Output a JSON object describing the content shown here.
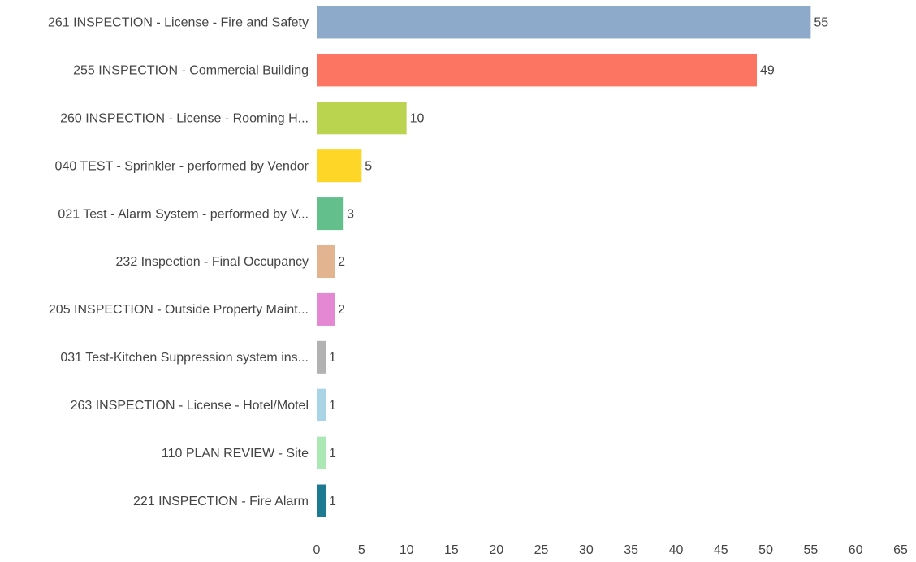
{
  "chart_data": {
    "type": "bar",
    "orientation": "horizontal",
    "categories": [
      "261 INSPECTION - License - Fire and Safety",
      "255 INSPECTION - Commercial Building",
      "260 INSPECTION - License - Rooming H...",
      "040 TEST - Sprinkler - performed by Vendor",
      "021 Test - Alarm System - performed by V...",
      "232 Inspection - Final Occupancy",
      "205 INSPECTION - Outside Property Maint...",
      "031 Test-Kitchen Suppression system ins...",
      "263 INSPECTION - License - Hotel/Motel",
      "110 PLAN REVIEW - Site",
      "221 INSPECTION - Fire Alarm"
    ],
    "values": [
      55,
      49,
      10,
      5,
      3,
      2,
      2,
      1,
      1,
      1,
      1
    ],
    "colors": [
      "#8eaacb",
      "#fc7462",
      "#bad44f",
      "#fdd628",
      "#63c08d",
      "#e3b490",
      "#e588d4",
      "#b2b2b2",
      "#a9d4e6",
      "#abe8b5",
      "#1d7a92"
    ],
    "xlim": [
      0,
      65
    ],
    "xticks": [
      0,
      5,
      10,
      15,
      20,
      25,
      30,
      35,
      40,
      45,
      50,
      55,
      60,
      65
    ],
    "grid": false
  }
}
